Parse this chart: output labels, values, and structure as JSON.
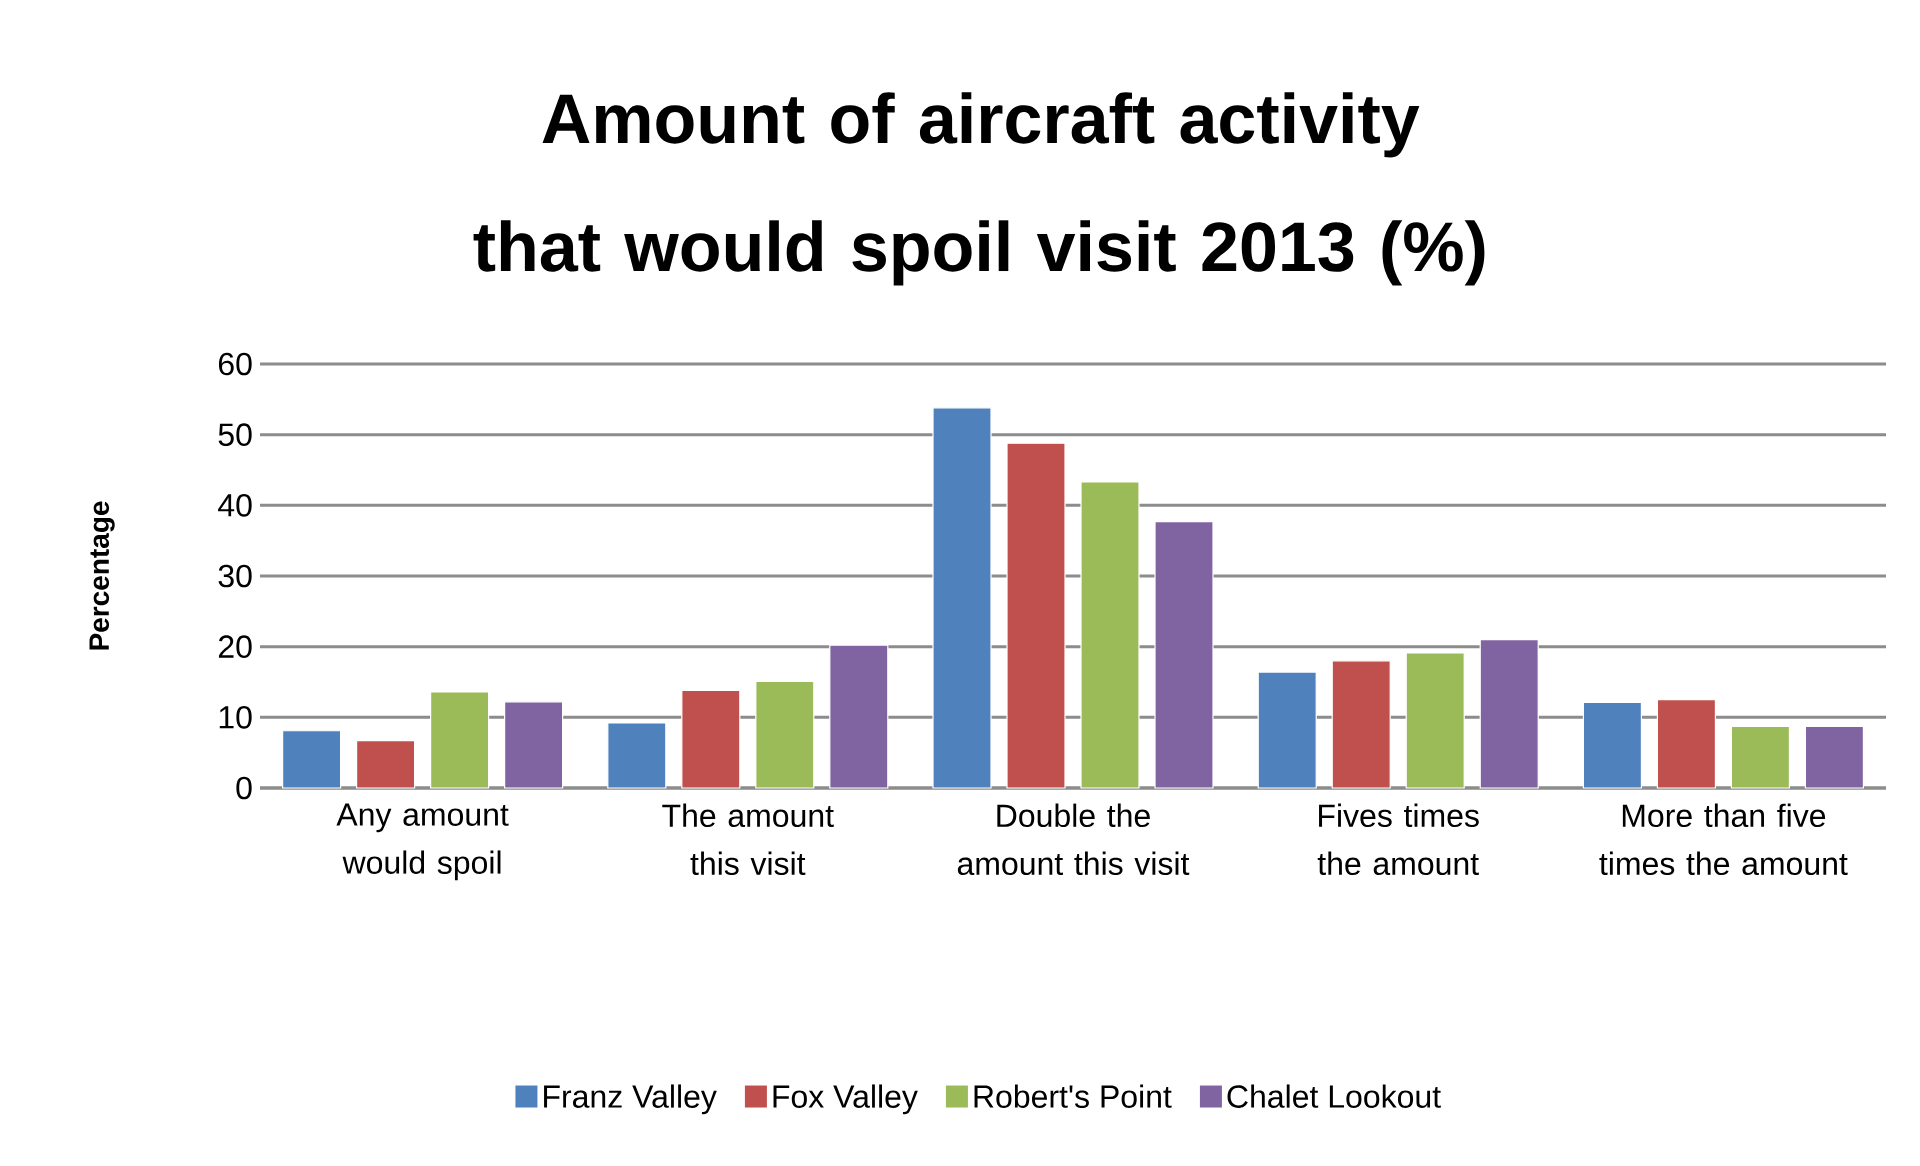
{
  "chart_data": {
    "type": "bar",
    "title": "Amount of aircraft activity that would spoil visit 2013 (%)",
    "ylabel": "Percentage",
    "categories": [
      "Any amount would spoil",
      "The amount this visit",
      "Double the amount this visit",
      "Fives times the amount",
      "More than five times the amount"
    ],
    "series": [
      {
        "name": "Franz Valley",
        "color": "#4f81bd",
        "values": [
          8.1,
          9.2,
          53.8,
          16.4,
          12.1
        ]
      },
      {
        "name": "Fox Valley",
        "color": "#c0504d",
        "values": [
          6.7,
          13.8,
          48.8,
          18.0,
          12.5
        ]
      },
      {
        "name": "Robert's Point",
        "color": "#9bbb59",
        "values": [
          13.6,
          15.1,
          43.3,
          19.1,
          8.7
        ]
      },
      {
        "name": "Chalet Lookout",
        "color": "#8064a2",
        "values": [
          12.2,
          20.2,
          37.7,
          21.0,
          8.7
        ]
      }
    ],
    "ylim": [
      0,
      60
    ],
    "yticks": [
      0,
      10,
      20,
      30,
      40,
      50,
      60
    ],
    "grid": "y",
    "legend": "bottom"
  }
}
